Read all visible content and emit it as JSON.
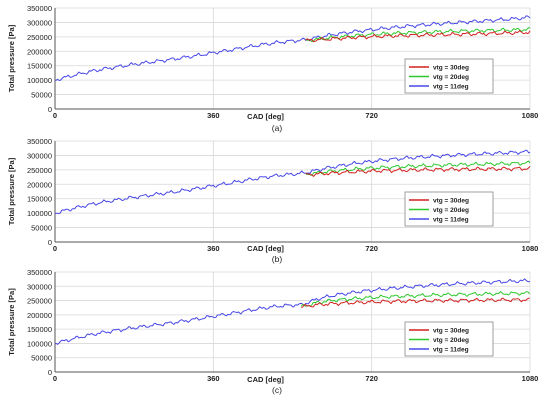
{
  "chart_data": [
    {
      "type": "line",
      "panel_label": "(a)",
      "xlabel": "CAD [deg]",
      "ylabel": "Total pressure [Pa]",
      "xlim": [
        0,
        1080
      ],
      "ylim": [
        0,
        350000
      ],
      "xticks": [
        0,
        360,
        720,
        1080
      ],
      "yticks": [
        0,
        50000,
        100000,
        150000,
        200000,
        250000,
        300000,
        350000
      ],
      "grid": true,
      "legend_position": "bottom-right",
      "series": [
        {
          "name": "vtg = 30deg",
          "color": "#d42020",
          "x": [
            570,
            620,
            680,
            740,
            800,
            860,
            920,
            980,
            1040,
            1080
          ],
          "y": [
            237000,
            242000,
            248000,
            252000,
            255000,
            257000,
            259000,
            261000,
            264000,
            266000
          ]
        },
        {
          "name": "vtg = 20deg",
          "color": "#2ec82e",
          "x": [
            570,
            620,
            680,
            740,
            800,
            860,
            920,
            980,
            1040,
            1080
          ],
          "y": [
            237000,
            246000,
            254000,
            260000,
            264000,
            267000,
            270000,
            272000,
            274000,
            276000
          ]
        },
        {
          "name": "vtg = 11deg",
          "color": "#4848e8",
          "x": [
            0,
            30,
            60,
            90,
            120,
            150,
            180,
            210,
            240,
            270,
            300,
            330,
            360,
            390,
            420,
            450,
            480,
            510,
            540,
            570,
            620,
            680,
            740,
            800,
            860,
            920,
            980,
            1040,
            1080
          ],
          "y": [
            100000,
            112000,
            123000,
            133000,
            141000,
            148000,
            155000,
            161000,
            167000,
            173000,
            180000,
            187000,
            195000,
            202000,
            210000,
            218000,
            225000,
            231000,
            236000,
            240000,
            255000,
            268000,
            278000,
            287000,
            294000,
            300000,
            306000,
            312000,
            318000
          ]
        }
      ]
    },
    {
      "type": "line",
      "panel_label": "(b)",
      "xlabel": "CAD [deg]",
      "ylabel": "Total pressure [Pa]",
      "xlim": [
        0,
        1080
      ],
      "ylim": [
        0,
        350000
      ],
      "xticks": [
        0,
        360,
        720,
        1080
      ],
      "yticks": [
        0,
        50000,
        100000,
        150000,
        200000,
        250000,
        300000,
        350000
      ],
      "grid": true,
      "legend_position": "bottom-right",
      "series": [
        {
          "name": "vtg = 30deg",
          "color": "#d42020",
          "x": [
            570,
            620,
            680,
            740,
            800,
            860,
            920,
            980,
            1040,
            1080
          ],
          "y": [
            233000,
            238000,
            243000,
            247000,
            249000,
            251000,
            252000,
            253000,
            254000,
            255000
          ]
        },
        {
          "name": "vtg = 20deg",
          "color": "#2ec82e",
          "x": [
            570,
            620,
            680,
            740,
            800,
            860,
            920,
            980,
            1040,
            1080
          ],
          "y": [
            234000,
            244000,
            252000,
            258000,
            262000,
            265000,
            268000,
            270000,
            272000,
            274000
          ]
        },
        {
          "name": "vtg = 11deg",
          "color": "#4848e8",
          "x": [
            0,
            30,
            60,
            90,
            120,
            150,
            180,
            210,
            240,
            270,
            300,
            330,
            360,
            390,
            420,
            450,
            480,
            510,
            540,
            570,
            620,
            680,
            740,
            800,
            860,
            920,
            980,
            1040,
            1080
          ],
          "y": [
            100000,
            112000,
            123000,
            133000,
            141000,
            148000,
            155000,
            161000,
            167000,
            173000,
            180000,
            187000,
            195000,
            202000,
            210000,
            218000,
            225000,
            231000,
            235000,
            240000,
            257000,
            272000,
            283000,
            291000,
            297000,
            302000,
            306000,
            310000,
            313000
          ]
        }
      ]
    },
    {
      "type": "line",
      "panel_label": "(c)",
      "xlabel": "CAD [deg]",
      "ylabel": "Total pressure [Pa]",
      "xlim": [
        0,
        1080
      ],
      "ylim": [
        0,
        350000
      ],
      "xticks": [
        0,
        360,
        720,
        1080
      ],
      "yticks": [
        0,
        50000,
        100000,
        150000,
        200000,
        250000,
        300000,
        350000
      ],
      "grid": true,
      "legend_position": "bottom-right",
      "series": [
        {
          "name": "vtg = 30deg",
          "color": "#d42020",
          "x": [
            560,
            600,
            640,
            700,
            760,
            820,
            880,
            940,
            1000,
            1080
          ],
          "y": [
            228000,
            236000,
            240000,
            244000,
            247000,
            249000,
            250000,
            251000,
            252000,
            253000
          ]
        },
        {
          "name": "vtg = 20deg",
          "color": "#2ec82e",
          "x": [
            560,
            600,
            640,
            700,
            760,
            820,
            880,
            940,
            1000,
            1080
          ],
          "y": [
            228000,
            244000,
            252000,
            259000,
            264000,
            267000,
            270000,
            272000,
            274000,
            276000
          ]
        },
        {
          "name": "vtg = 11deg",
          "color": "#4848e8",
          "x": [
            0,
            30,
            60,
            90,
            120,
            150,
            180,
            210,
            240,
            270,
            300,
            330,
            360,
            390,
            420,
            450,
            480,
            510,
            540,
            560,
            600,
            640,
            700,
            760,
            820,
            880,
            940,
            1000,
            1080
          ],
          "y": [
            100000,
            112000,
            123000,
            133000,
            141000,
            148000,
            155000,
            161000,
            167000,
            173000,
            180000,
            187000,
            195000,
            202000,
            210000,
            218000,
            225000,
            231000,
            234000,
            235000,
            257000,
            270000,
            283000,
            292000,
            300000,
            306000,
            311000,
            315000,
            320000
          ]
        }
      ]
    }
  ]
}
